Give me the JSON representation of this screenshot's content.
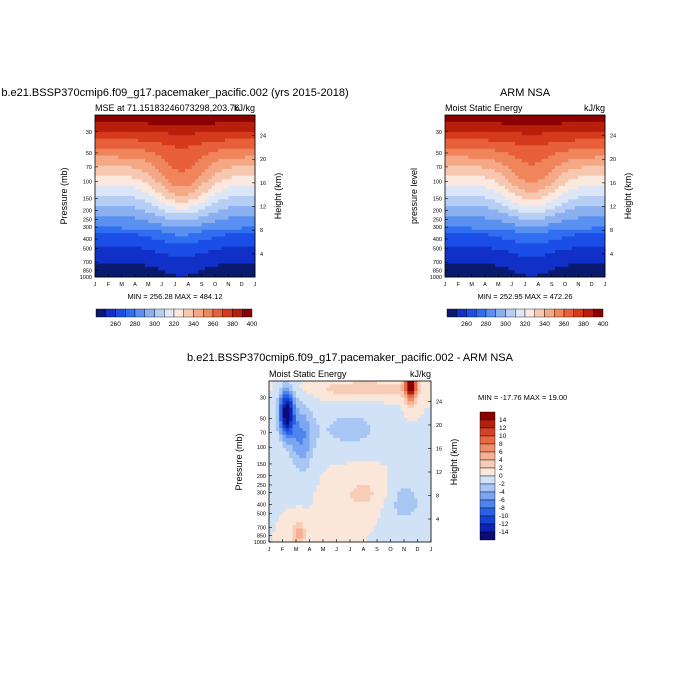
{
  "chart_data": [
    {
      "type": "heatmap",
      "title": "b.e21.BSSP370cmip6.f09_g17.pacemaker_pacific.002 (yrs 2015-2018)",
      "subtitle_left": "MSE at 71.15183246073298,203.76",
      "subtitle_right": "kJ/kg",
      "ylabel": "Pressure (mb)",
      "ylabel_right": "Height (km)",
      "x_ticks": [
        "J",
        "F",
        "M",
        "A",
        "M",
        "J",
        "J",
        "A",
        "S",
        "O",
        "N",
        "D",
        "J"
      ],
      "y_ticks": [
        "30",
        "50",
        "70",
        "100",
        "150",
        "200",
        "250",
        "300",
        "400",
        "500",
        "700",
        "850",
        "1000"
      ],
      "y2_ticks": [
        "24",
        "20",
        "16",
        "12",
        "8",
        "4"
      ],
      "stats": "MIN = 256.28 MAX = 484.12",
      "colorbar_labels": [
        "260",
        "280",
        "300",
        "320",
        "340",
        "360",
        "380",
        "400"
      ],
      "min": 256.28,
      "max": 484.12
    },
    {
      "type": "heatmap",
      "title": "ARM NSA",
      "subtitle_left": "Moist Static Energy",
      "subtitle_right": "kJ/kg",
      "ylabel": "pressure level",
      "ylabel_right": "Height (km)",
      "x_ticks": [
        "J",
        "F",
        "M",
        "A",
        "M",
        "J",
        "J",
        "A",
        "S",
        "O",
        "N",
        "D",
        "J"
      ],
      "y_ticks": [
        "30",
        "50",
        "70",
        "100",
        "150",
        "200",
        "250",
        "300",
        "400",
        "500",
        "700",
        "850",
        "1000"
      ],
      "y2_ticks": [
        "24",
        "20",
        "16",
        "12",
        "8",
        "4"
      ],
      "stats": "MIN = 252.95 MAX = 472.26",
      "colorbar_labels": [
        "260",
        "280",
        "300",
        "320",
        "340",
        "360",
        "380",
        "400"
      ],
      "min": 252.95,
      "max": 472.26
    },
    {
      "type": "heatmap",
      "title": "b.e21.BSSP370cmip6.f09_g17.pacemaker_pacific.002 - ARM NSA",
      "subtitle_left": "Moist Static Energy",
      "subtitle_right": "kJ/kg",
      "ylabel": "Pressure (mb)",
      "ylabel_right": "Height (km)",
      "x_ticks": [
        "J",
        "F",
        "M",
        "A",
        "M",
        "J",
        "J",
        "A",
        "S",
        "O",
        "N",
        "D",
        "J"
      ],
      "y_ticks": [
        "30",
        "50",
        "70",
        "100",
        "150",
        "200",
        "250",
        "300",
        "400",
        "500",
        "700",
        "850",
        "1000"
      ],
      "y2_ticks": [
        "24",
        "20",
        "16",
        "12",
        "8",
        "4"
      ],
      "stats": "MIN = -17.76 MAX =  19.00",
      "colorbar_labels": [
        "14",
        "12",
        "10",
        "8",
        "6",
        "4",
        "2",
        "0",
        "-2",
        "-4",
        "-6",
        "-8",
        "-10",
        "-12",
        "-14"
      ],
      "min": -17.76,
      "max": 19.0
    }
  ],
  "colors": {
    "mse_levels": [
      "#0a1a6e",
      "#1030c8",
      "#1a4ee6",
      "#2f6ef0",
      "#5a90f0",
      "#8ab0f2",
      "#b6cdf4",
      "#dbe6f6",
      "#fbe9df",
      "#f7c8b0",
      "#f4a886",
      "#f0855c",
      "#e8603a",
      "#d63a1c",
      "#b81e0c",
      "#8b0000"
    ],
    "diff_levels": [
      "#0a0a78",
      "#0c22b4",
      "#1442d4",
      "#2a62e6",
      "#4e84ee",
      "#7aa6f2",
      "#a8c6f4",
      "#d2e2f6",
      "#fbe6da",
      "#f8cdb8",
      "#f5b092",
      "#f08e68",
      "#e86a44",
      "#d44424",
      "#b4200e",
      "#8b0000"
    ]
  }
}
